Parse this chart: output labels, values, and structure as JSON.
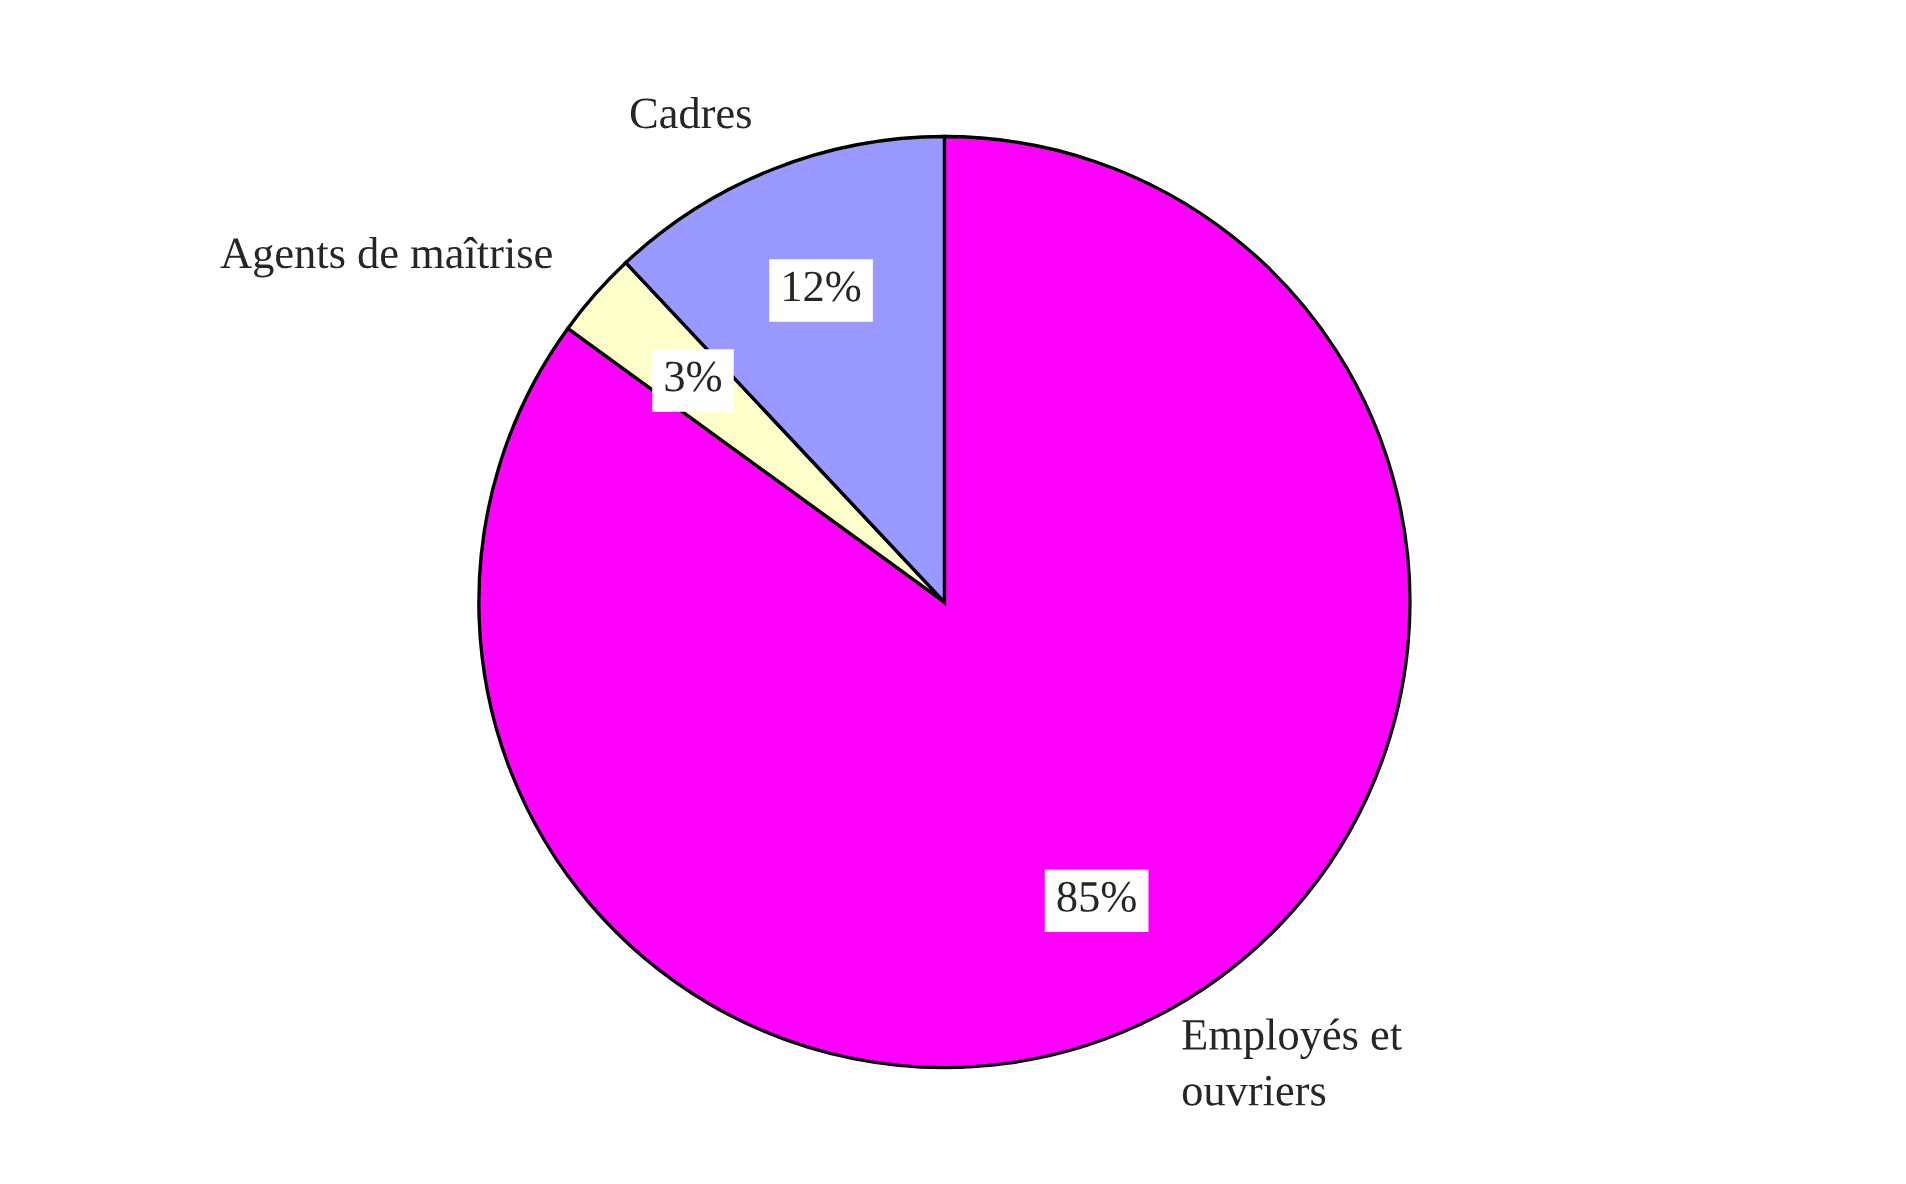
{
  "chart_data": {
    "type": "pie",
    "categories": [
      "Employés et\nouvriers",
      "Agents de maîtrise",
      "Cadres"
    ],
    "values": [
      85,
      3,
      12
    ],
    "colors": [
      "#ff00ff",
      "#ffffcc",
      "#9999ff"
    ],
    "value_labels": [
      "85%",
      "3%",
      "12%"
    ],
    "legend": false
  }
}
